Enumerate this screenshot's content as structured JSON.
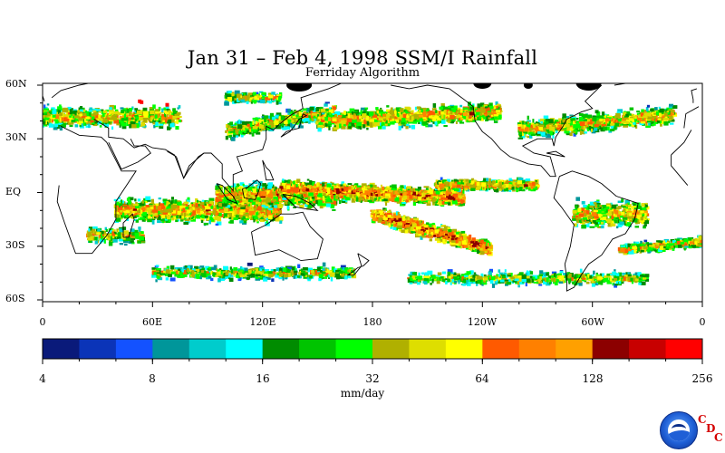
{
  "title": "Jan 31 – Feb 4, 1998 SSM/I Rainfall",
  "subtitle": "Ferriday Algorithm",
  "lat_labels": [
    "60N",
    "30N",
    "EQ",
    "30S",
    "60S"
  ],
  "lat_values": [
    60,
    30,
    0,
    -30,
    -60
  ],
  "lon_labels": [
    "0",
    "60E",
    "120E",
    "180",
    "120W",
    "60W",
    "0"
  ],
  "lon_values": [
    0,
    60,
    120,
    180,
    240,
    300,
    360
  ],
  "colorbar": {
    "colors": [
      "#0a1a7a",
      "#0b34b8",
      "#1452ff",
      "#00969a",
      "#00cccc",
      "#00ffff",
      "#008c00",
      "#00c400",
      "#00ff00",
      "#b0b000",
      "#dede00",
      "#ffff00",
      "#ff5a00",
      "#ff8000",
      "#ffa000",
      "#8c0000",
      "#c80000",
      "#ff0000"
    ],
    "tick_labels": [
      "4",
      "8",
      "16",
      "32",
      "64",
      "128",
      "256"
    ],
    "units": "mm/day"
  },
  "logo": {
    "name": "noaa-logo",
    "letters": [
      "C",
      "D",
      "C"
    ],
    "letter_color": "#d40000"
  }
}
